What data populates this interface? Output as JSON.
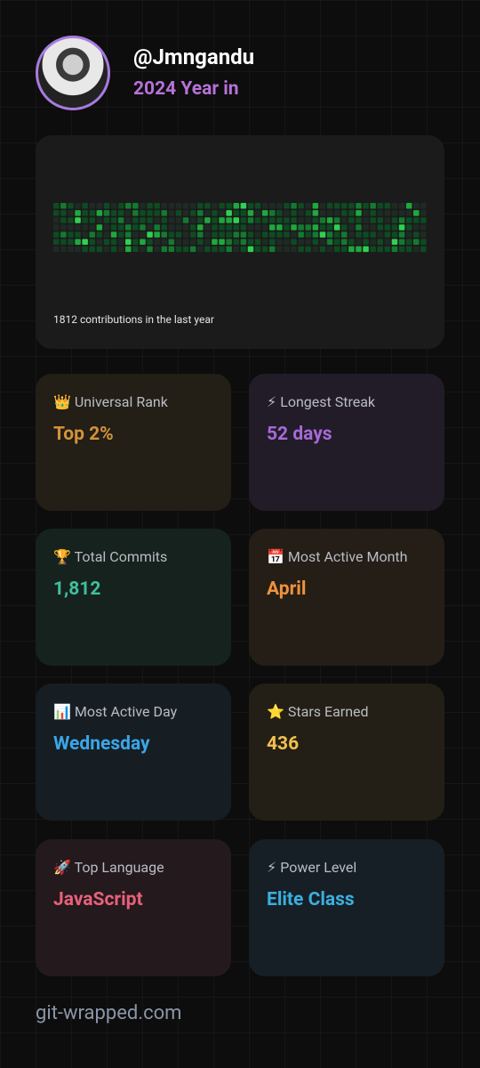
{
  "header": {
    "username": "@Jmngandu",
    "subtitle": "2024 Year in"
  },
  "contributions": {
    "caption": "1812 contributions in the last year"
  },
  "cards": [
    {
      "label": "👑 Universal Rank",
      "value": "Top 2%"
    },
    {
      "label": "⚡ Longest Streak",
      "value": "52 days"
    },
    {
      "label": "🏆 Total Commits",
      "value": "1,812"
    },
    {
      "label": "📅 Most Active Month",
      "value": "April"
    },
    {
      "label": "📊 Most Active Day",
      "value": "Wednesday"
    },
    {
      "label": "⭐ Stars Earned",
      "value": "436"
    },
    {
      "label": "🚀 Top Language",
      "value": "JavaScript"
    },
    {
      "label": "⚡ Power Level",
      "value": "Elite Class"
    }
  ],
  "footer": "git-wrapped.com"
}
